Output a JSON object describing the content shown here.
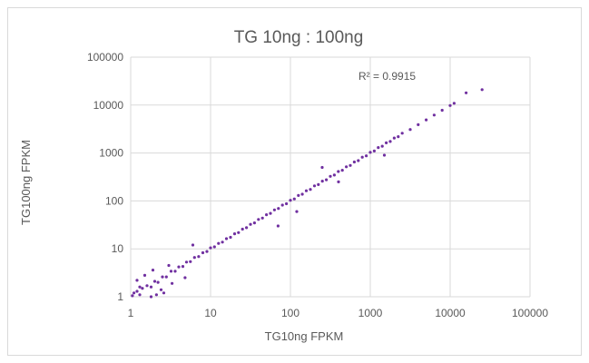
{
  "chart_data": {
    "type": "scatter",
    "title": "TG 10ng : 100ng",
    "xlabel": "TG10ng FPKM",
    "ylabel": "TG100ng FPKM",
    "x_scale": "log",
    "y_scale": "log",
    "xlim": [
      1,
      100000
    ],
    "ylim": [
      1,
      100000
    ],
    "x_ticks": [
      "1",
      "10",
      "100",
      "1000",
      "10000",
      "100000"
    ],
    "y_ticks": [
      "1",
      "10",
      "100",
      "1000",
      "10000",
      "100000"
    ],
    "grid": true,
    "legend": "none",
    "annotation": "R² = 0.9915",
    "marker_color": "#7030a0",
    "series": [
      {
        "x": [
          1.05,
          1.1,
          1.2,
          1.3,
          1.4,
          1.6,
          1.8,
          2.0,
          2.2,
          2.5,
          2.8,
          3.2,
          3.6,
          4.0,
          4.5,
          5.0,
          5.6,
          6.3,
          7.1,
          8.0,
          9.0,
          10,
          11.2,
          12.6,
          14.1,
          15.8,
          17.8,
          20,
          22.4,
          25.1,
          28.2,
          31.6,
          35.5,
          39.8,
          44.7,
          50.1,
          56.2,
          63.1,
          70.8,
          79.4,
          89.1,
          100,
          112,
          126,
          141,
          158,
          178,
          200,
          224,
          251,
          282,
          316,
          355,
          398,
          447,
          501,
          562,
          631,
          708,
          794,
          891,
          1000,
          1122,
          1259,
          1413,
          1585,
          1778,
          1995,
          2239,
          2512,
          3162,
          3981,
          5012,
          6310,
          7943,
          10000,
          11220,
          15849,
          25119,
          1.5,
          2.1,
          2.6,
          3.0,
          1.2,
          1.8,
          4.8,
          6.0,
          1.3,
          1.9,
          2.4,
          3.3,
          70,
          120,
          250,
          400,
          1500
        ],
        "y": [
          1.05,
          1.2,
          1.3,
          1.1,
          1.5,
          1.7,
          1.6,
          2.1,
          2.0,
          2.6,
          2.6,
          3.4,
          3.4,
          4.2,
          4.3,
          5.3,
          5.4,
          6.6,
          6.9,
          8.3,
          8.8,
          10.5,
          11.0,
          13.0,
          13.8,
          16.3,
          17.4,
          20.6,
          21.8,
          25.8,
          27.6,
          32.5,
          34.8,
          41.0,
          43.8,
          51.5,
          55.1,
          64.9,
          69.5,
          81.7,
          87.4,
          103,
          110,
          130,
          138,
          163,
          174,
          206,
          219,
          259,
          276,
          326,
          347,
          410,
          437,
          516,
          551,
          650,
          694,
          818,
          873,
          1030,
          1100,
          1297,
          1385,
          1633,
          1743,
          2055,
          2194,
          2588,
          3099,
          3901,
          4912,
          6184,
          7784,
          9800,
          10900,
          18000,
          21000,
          2.8,
          1.1,
          1.2,
          4.5,
          2.2,
          1.0,
          2.5,
          12,
          1.6,
          3.6,
          1.4,
          1.9,
          30,
          60,
          500,
          250,
          900
        ]
      }
    ]
  }
}
